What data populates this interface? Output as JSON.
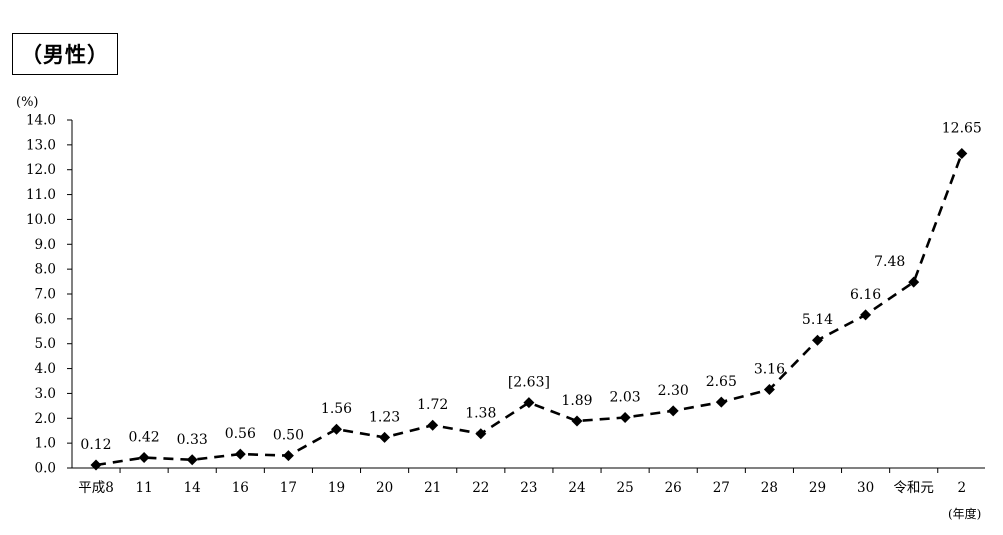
{
  "title": "（男性）",
  "chart_data": {
    "type": "line",
    "ylabel": "(%)",
    "xlabel": "(年度)",
    "ylim": [
      0,
      14
    ],
    "yticks": [
      "0.0",
      "1.0",
      "2.0",
      "3.0",
      "4.0",
      "5.0",
      "6.0",
      "7.0",
      "8.0",
      "9.0",
      "10.0",
      "11.0",
      "12.0",
      "13.0",
      "14.0"
    ],
    "categories": [
      "平成8",
      "11",
      "14",
      "16",
      "17",
      "19",
      "20",
      "21",
      "22",
      "23",
      "24",
      "25",
      "26",
      "27",
      "28",
      "29",
      "30",
      "令和元",
      "2"
    ],
    "series": [
      {
        "values": [
          0.12,
          0.42,
          0.33,
          0.56,
          0.5,
          1.56,
          1.23,
          1.72,
          1.38,
          2.63,
          1.89,
          2.03,
          2.3,
          2.65,
          3.16,
          5.14,
          6.16,
          7.48,
          12.65
        ],
        "labels": [
          "0.12",
          "0.42",
          "0.33",
          "0.56",
          "0.50",
          "1.56",
          "1.23",
          "1.72",
          "1.38",
          "[2.63]",
          "1.89",
          "2.03",
          "2.30",
          "2.65",
          "3.16",
          "5.14",
          "6.16",
          "7.48",
          "12.65"
        ]
      }
    ],
    "line_style": "dashed",
    "marker": "diamond",
    "color": "#000000",
    "grid": false
  }
}
